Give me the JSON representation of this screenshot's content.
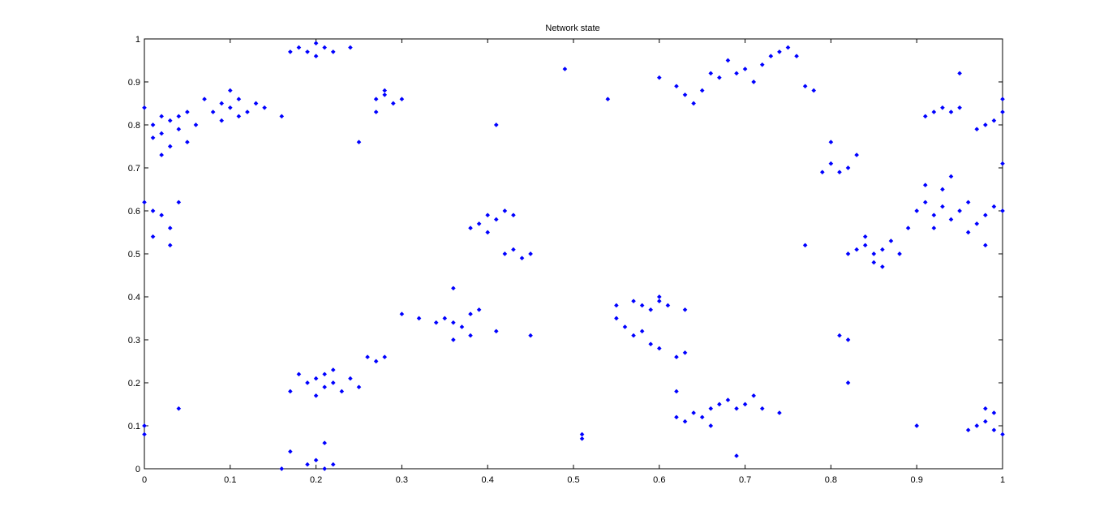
{
  "chart_data": {
    "type": "scatter",
    "title": "Network state",
    "color": "#0000ff",
    "x": [
      0.01,
      0.02,
      0.03,
      0.04,
      0.05,
      0.02,
      0.0,
      0.03,
      0.06,
      0.01,
      0.04,
      0.02,
      0.05,
      0.08,
      0.09,
      0.1,
      0.11,
      0.12,
      0.1,
      0.13,
      0.07,
      0.11,
      0.14,
      0.09,
      0.16,
      0.18,
      0.19,
      0.2,
      0.21,
      0.22,
      0.24,
      0.2,
      0.17,
      0.27,
      0.28,
      0.29,
      0.3,
      0.27,
      0.28,
      0.01,
      0.02,
      0.03,
      0.01,
      0.03,
      0.04,
      0.0,
      0.41,
      0.49,
      0.54,
      0.25,
      0.39,
      0.4,
      0.41,
      0.42,
      0.38,
      0.4,
      0.43,
      0.42,
      0.43,
      0.44,
      0.45,
      0.3,
      0.32,
      0.34,
      0.35,
      0.36,
      0.37,
      0.38,
      0.38,
      0.39,
      0.36,
      0.41,
      0.45,
      0.36,
      0.19,
      0.2,
      0.21,
      0.22,
      0.23,
      0.2,
      0.18,
      0.24,
      0.22,
      0.17,
      0.21,
      0.25,
      0.19,
      0.21,
      0.22,
      0.2,
      0.16,
      0.21,
      0.17,
      0.26,
      0.27,
      0.28,
      0.51,
      0.51,
      0.04,
      0.0,
      0.0,
      0.55,
      0.57,
      0.58,
      0.59,
      0.6,
      0.61,
      0.63,
      0.6,
      0.56,
      0.57,
      0.58,
      0.59,
      0.6,
      0.62,
      0.63,
      0.55,
      0.62,
      0.63,
      0.64,
      0.65,
      0.66,
      0.67,
      0.68,
      0.69,
      0.7,
      0.71,
      0.72,
      0.66,
      0.74,
      0.69,
      0.62,
      0.62,
      0.63,
      0.64,
      0.65,
      0.67,
      0.69,
      0.7,
      0.71,
      0.72,
      0.73,
      0.74,
      0.75,
      0.76,
      0.68,
      0.66,
      0.6,
      0.77,
      0.78,
      0.8,
      0.81,
      0.82,
      0.83,
      0.79,
      0.8,
      0.81,
      0.82,
      0.82,
      0.77,
      0.83,
      0.84,
      0.85,
      0.86,
      0.85,
      0.84,
      0.87,
      0.86,
      0.82,
      0.88,
      0.9,
      0.91,
      0.92,
      0.93,
      0.94,
      0.95,
      0.96,
      0.93,
      0.92,
      0.97,
      0.98,
      0.99,
      0.89,
      0.94,
      0.96,
      1.0,
      0.91,
      0.98,
      0.92,
      0.93,
      0.94,
      0.95,
      0.91,
      0.95,
      0.99,
      1.0,
      0.98,
      0.97,
      1.0,
      1.0,
      0.97,
      0.98,
      0.99,
      0.96,
      0.99,
      1.0,
      0.98,
      0.9
    ],
    "values": [
      0.8,
      0.82,
      0.81,
      0.79,
      0.83,
      0.78,
      0.84,
      0.75,
      0.8,
      0.77,
      0.82,
      0.73,
      0.76,
      0.83,
      0.85,
      0.84,
      0.86,
      0.83,
      0.88,
      0.85,
      0.86,
      0.82,
      0.84,
      0.81,
      0.82,
      0.98,
      0.97,
      0.99,
      0.98,
      0.97,
      0.98,
      0.96,
      0.97,
      0.86,
      0.87,
      0.85,
      0.86,
      0.83,
      0.88,
      0.6,
      0.59,
      0.56,
      0.54,
      0.52,
      0.62,
      0.62,
      0.8,
      0.93,
      0.86,
      0.76,
      0.57,
      0.59,
      0.58,
      0.6,
      0.56,
      0.55,
      0.59,
      0.5,
      0.51,
      0.49,
      0.5,
      0.36,
      0.35,
      0.34,
      0.35,
      0.34,
      0.33,
      0.36,
      0.31,
      0.37,
      0.3,
      0.32,
      0.31,
      0.42,
      0.2,
      0.21,
      0.19,
      0.2,
      0.18,
      0.17,
      0.22,
      0.21,
      0.23,
      0.18,
      0.22,
      0.19,
      0.01,
      0.0,
      0.01,
      0.02,
      0.0,
      0.06,
      0.04,
      0.26,
      0.25,
      0.26,
      0.08,
      0.07,
      0.14,
      0.1,
      0.08,
      0.38,
      0.39,
      0.38,
      0.37,
      0.39,
      0.38,
      0.37,
      0.4,
      0.33,
      0.31,
      0.32,
      0.29,
      0.28,
      0.26,
      0.27,
      0.35,
      0.12,
      0.11,
      0.13,
      0.12,
      0.14,
      0.15,
      0.16,
      0.14,
      0.15,
      0.17,
      0.14,
      0.1,
      0.13,
      0.03,
      0.18,
      0.89,
      0.87,
      0.85,
      0.88,
      0.91,
      0.92,
      0.93,
      0.9,
      0.94,
      0.96,
      0.97,
      0.98,
      0.96,
      0.95,
      0.92,
      0.91,
      0.89,
      0.88,
      0.71,
      0.69,
      0.7,
      0.73,
      0.69,
      0.76,
      0.31,
      0.3,
      0.2,
      0.52,
      0.51,
      0.52,
      0.5,
      0.51,
      0.48,
      0.54,
      0.53,
      0.47,
      0.5,
      0.5,
      0.6,
      0.62,
      0.59,
      0.61,
      0.58,
      0.6,
      0.62,
      0.65,
      0.56,
      0.57,
      0.59,
      0.61,
      0.56,
      0.68,
      0.55,
      0.6,
      0.66,
      0.52,
      0.83,
      0.84,
      0.83,
      0.84,
      0.82,
      0.92,
      0.81,
      0.83,
      0.8,
      0.79,
      0.86,
      0.71,
      0.1,
      0.11,
      0.09,
      0.09,
      0.13,
      0.08,
      0.14,
      0.1
    ],
    "xlim": [
      0,
      1
    ],
    "xticks": [
      0,
      0.1,
      0.2,
      0.3,
      0.4,
      0.5,
      0.6,
      0.7,
      0.8,
      0.9,
      1
    ],
    "ylim": [
      0,
      1
    ],
    "yticks": [
      0,
      0.1,
      0.2,
      0.3,
      0.4,
      0.5,
      0.6,
      0.7,
      0.8,
      0.9,
      1
    ]
  }
}
